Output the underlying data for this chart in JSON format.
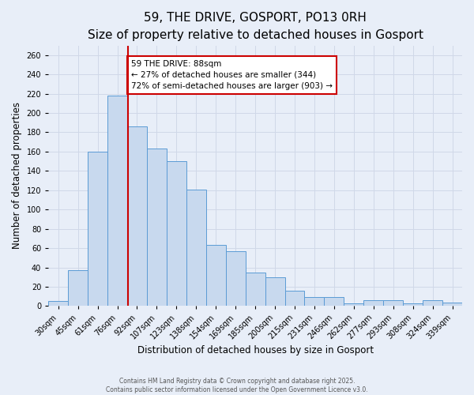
{
  "title": "59, THE DRIVE, GOSPORT, PO13 0RH",
  "subtitle": "Size of property relative to detached houses in Gosport",
  "xlabel": "Distribution of detached houses by size in Gosport",
  "ylabel": "Number of detached properties",
  "categories": [
    "30sqm",
    "45sqm",
    "61sqm",
    "76sqm",
    "92sqm",
    "107sqm",
    "123sqm",
    "138sqm",
    "154sqm",
    "169sqm",
    "185sqm",
    "200sqm",
    "215sqm",
    "231sqm",
    "246sqm",
    "262sqm",
    "277sqm",
    "293sqm",
    "308sqm",
    "324sqm",
    "339sqm"
  ],
  "values": [
    5,
    37,
    160,
    218,
    186,
    163,
    150,
    121,
    63,
    57,
    35,
    30,
    16,
    9,
    9,
    3,
    6,
    6,
    3,
    6,
    4
  ],
  "bar_color": "#c8d9ee",
  "bar_edge_color": "#5b9bd5",
  "vline_x_pos": 3.55,
  "vline_color": "#cc0000",
  "annotation_box_text": "59 THE DRIVE: 88sqm\n← 27% of detached houses are smaller (344)\n72% of semi-detached houses are larger (903) →",
  "annotation_box_color": "#cc0000",
  "annotation_box_fill": "#ffffff",
  "ylim": [
    0,
    270
  ],
  "yticks": [
    0,
    20,
    40,
    60,
    80,
    100,
    120,
    140,
    160,
    180,
    200,
    220,
    240,
    260
  ],
  "background_color": "#e8eef8",
  "grid_color": "#d0d8e8",
  "title_fontsize": 11,
  "subtitle_fontsize": 9,
  "axis_label_fontsize": 8.5,
  "tick_fontsize": 7,
  "annot_fontsize": 7.5,
  "footer_line1": "Contains HM Land Registry data © Crown copyright and database right 2025.",
  "footer_line2": "Contains public sector information licensed under the Open Government Licence v3.0."
}
